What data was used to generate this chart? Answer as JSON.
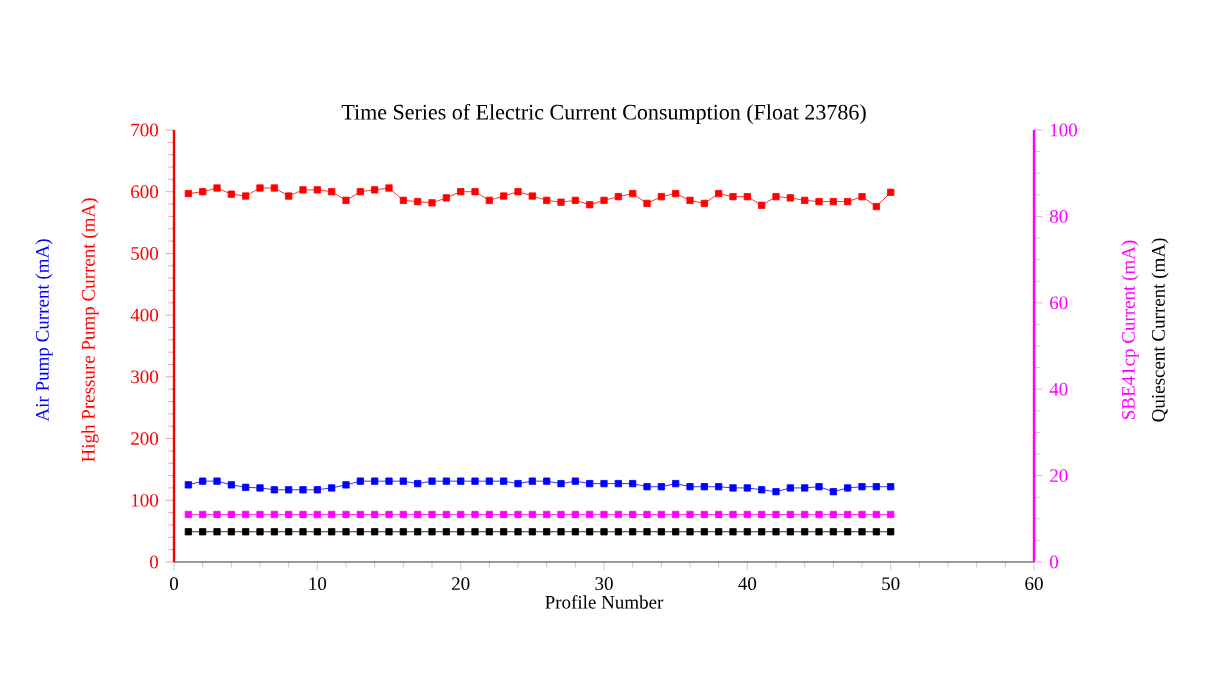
{
  "chart_data": {
    "type": "line",
    "title": "Time Series of Electric Current Consumption (Float 23786)",
    "xlabel": "Profile Number",
    "x": [
      1,
      2,
      3,
      4,
      5,
      6,
      7,
      8,
      9,
      10,
      11,
      12,
      13,
      14,
      15,
      16,
      17,
      18,
      19,
      20,
      21,
      22,
      23,
      24,
      25,
      26,
      27,
      28,
      29,
      30,
      31,
      32,
      33,
      34,
      35,
      36,
      37,
      38,
      39,
      40,
      41,
      42,
      43,
      44,
      45,
      46,
      47,
      48,
      49,
      50
    ],
    "series": [
      {
        "name": "High Pressure Pump Current (mA)",
        "color": "#ff0000",
        "values": [
          597,
          600,
          606,
          596,
          593,
          606,
          606,
          593,
          603,
          603,
          600,
          586,
          600,
          603,
          606,
          586,
          584,
          582,
          590,
          600,
          600,
          586,
          593,
          600,
          593,
          586,
          583,
          586,
          579,
          586,
          592,
          597,
          581,
          592,
          597,
          586,
          581,
          597,
          592,
          592,
          578,
          592,
          590,
          586,
          584,
          584,
          584,
          592,
          576,
          599
        ]
      },
      {
        "name": "Air Pump Current (mA)",
        "color": "#0000ff",
        "values": [
          125,
          131,
          131,
          125,
          121,
          120,
          117,
          117,
          117,
          117,
          120,
          125,
          131,
          131,
          131,
          131,
          127,
          131,
          131,
          131,
          131,
          131,
          131,
          127,
          131,
          131,
          127,
          131,
          127,
          127,
          127,
          127,
          122,
          122,
          127,
          122,
          122,
          122,
          120,
          120,
          117,
          114,
          120,
          120,
          122,
          114,
          120,
          122,
          122,
          122
        ]
      },
      {
        "name": "SBE41cp Current (mA)",
        "color": "#ff00ff",
        "axis": "y2",
        "values": [
          11,
          11,
          11,
          11,
          11,
          11,
          11,
          11,
          11,
          11,
          11,
          11,
          11,
          11,
          11,
          11,
          11,
          11,
          11,
          11,
          11,
          11,
          11,
          11,
          11,
          11,
          11,
          11,
          11,
          11,
          11,
          11,
          11,
          11,
          11,
          11,
          11,
          11,
          11,
          11,
          11,
          11,
          11,
          11,
          11,
          11,
          11,
          11,
          11,
          11
        ]
      },
      {
        "name": "Quiescent Current (mA)",
        "color": "#000000",
        "axis": "y2",
        "values": [
          7,
          7,
          7,
          7,
          7,
          7,
          7,
          7,
          7,
          7,
          7,
          7,
          7,
          7,
          7,
          7,
          7,
          7,
          7,
          7,
          7,
          7,
          7,
          7,
          7,
          7,
          7,
          7,
          7,
          7,
          7,
          7,
          7,
          7,
          7,
          7,
          7,
          7,
          7,
          7,
          7,
          7,
          7,
          7,
          7,
          7,
          7,
          7,
          7,
          7
        ]
      }
    ],
    "xlim": [
      0,
      60
    ],
    "xticks": [
      0,
      10,
      20,
      30,
      40,
      50,
      60
    ],
    "ylim": [
      0,
      700
    ],
    "yticks": [
      0,
      100,
      200,
      300,
      400,
      500,
      600,
      700
    ],
    "y2lim": [
      0,
      100
    ],
    "y2ticks": [
      0,
      20,
      40,
      60,
      80,
      100
    ],
    "marker": "square",
    "line_style": "solid"
  }
}
